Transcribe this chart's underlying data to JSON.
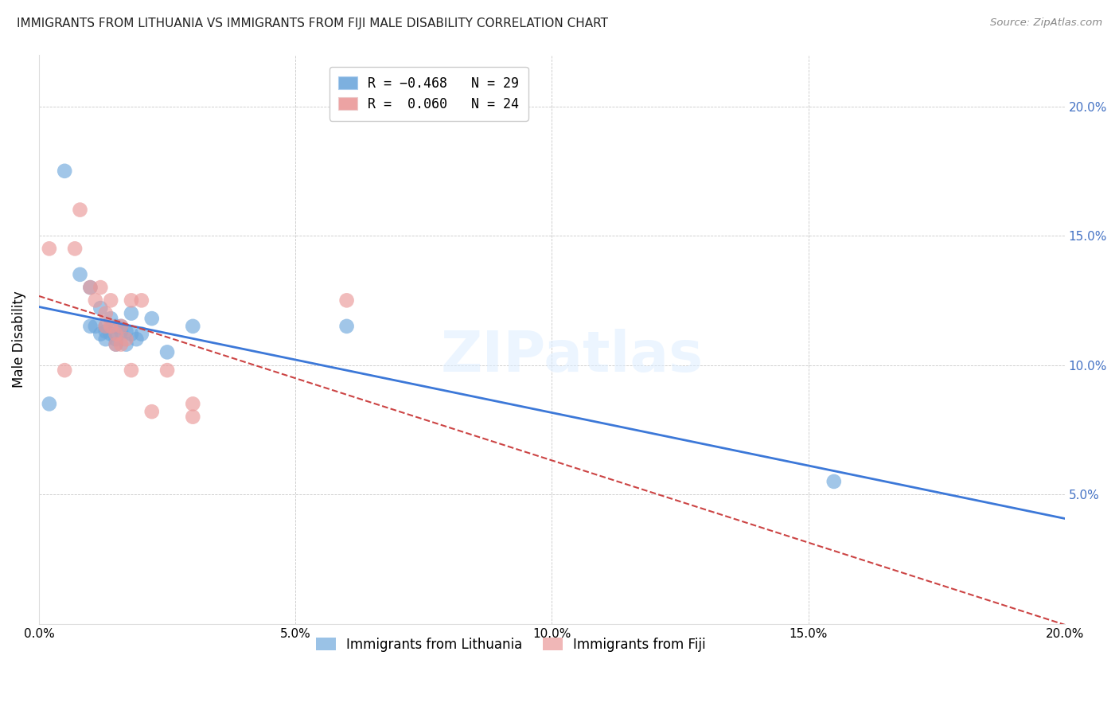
{
  "title": "IMMIGRANTS FROM LITHUANIA VS IMMIGRANTS FROM FIJI MALE DISABILITY CORRELATION CHART",
  "source": "Source: ZipAtlas.com",
  "ylabel": "Male Disability",
  "xlim": [
    0.0,
    0.2
  ],
  "ylim": [
    0.0,
    0.22
  ],
  "yticks": [
    0.0,
    0.05,
    0.1,
    0.15,
    0.2
  ],
  "xticks": [
    0.0,
    0.05,
    0.1,
    0.15,
    0.2
  ],
  "xtick_labels": [
    "0.0%",
    "5.0%",
    "10.0%",
    "15.0%",
    "20.0%"
  ],
  "ytick_labels_left": [
    "",
    "",
    "",
    "",
    ""
  ],
  "ytick_labels_right": [
    "",
    "5.0%",
    "10.0%",
    "15.0%",
    "20.0%"
  ],
  "color_lithuania": "#6fa8dc",
  "color_fiji": "#ea9999",
  "color_trendline_lithuania": "#3c78d8",
  "color_trendline_fiji": "#cc4444",
  "watermark": "ZIPatlas",
  "lithuania_x": [
    0.002,
    0.005,
    0.008,
    0.01,
    0.01,
    0.011,
    0.012,
    0.012,
    0.013,
    0.013,
    0.013,
    0.014,
    0.014,
    0.015,
    0.015,
    0.015,
    0.016,
    0.016,
    0.017,
    0.017,
    0.018,
    0.018,
    0.019,
    0.02,
    0.022,
    0.025,
    0.03,
    0.06,
    0.155
  ],
  "lithuania_y": [
    0.085,
    0.175,
    0.135,
    0.13,
    0.115,
    0.115,
    0.122,
    0.112,
    0.115,
    0.113,
    0.11,
    0.118,
    0.112,
    0.115,
    0.11,
    0.108,
    0.115,
    0.113,
    0.113,
    0.108,
    0.12,
    0.112,
    0.11,
    0.112,
    0.118,
    0.105,
    0.115,
    0.115,
    0.055
  ],
  "fiji_x": [
    0.002,
    0.005,
    0.007,
    0.008,
    0.01,
    0.011,
    0.012,
    0.013,
    0.013,
    0.014,
    0.014,
    0.015,
    0.015,
    0.016,
    0.016,
    0.017,
    0.018,
    0.018,
    0.02,
    0.022,
    0.025,
    0.03,
    0.03,
    0.06
  ],
  "fiji_y": [
    0.145,
    0.098,
    0.145,
    0.16,
    0.13,
    0.125,
    0.13,
    0.12,
    0.115,
    0.125,
    0.115,
    0.112,
    0.108,
    0.115,
    0.108,
    0.11,
    0.098,
    0.125,
    0.125,
    0.082,
    0.098,
    0.08,
    0.085,
    0.125
  ]
}
